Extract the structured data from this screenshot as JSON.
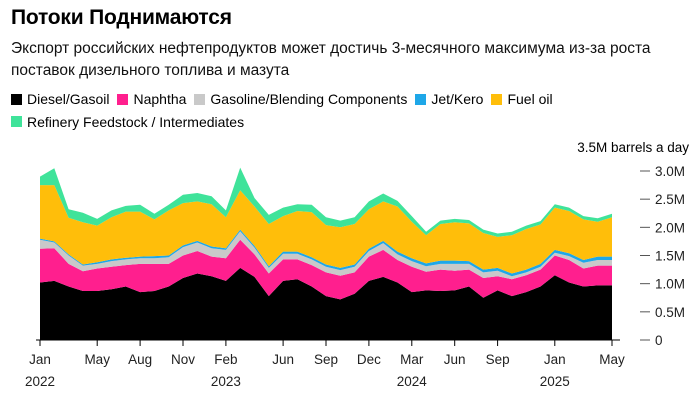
{
  "title": "Потоки Поднимаются",
  "subtitle": "Экспорт российских нефтепродуктов может достичь 3-месячного максимума из-за роста поставок дизельного топлива и мазута",
  "unit_label": "3.5M barrels a day",
  "colors": {
    "diesel": "#000000",
    "naphtha": "#ff1f8e",
    "gasoline": "#c9c9c9",
    "jet": "#1ea7e8",
    "fueloil": "#ffbe0a",
    "feedstock": "#3fe39a"
  },
  "chart_data": {
    "type": "area",
    "stacked": true,
    "legend_position": "top-left",
    "grid": false,
    "ylim": [
      0,
      3.0
    ],
    "y_ticks": [
      0,
      0.5,
      1.0,
      1.5,
      2.0,
      2.5,
      3.0
    ],
    "y_tick_labels": [
      "0",
      "0.5M",
      "1.0M",
      "1.5M",
      "2.0M",
      "2.5M",
      "3.0M"
    ],
    "x_ticks": [
      {
        "label": "Jan",
        "year": "2022",
        "date": "2022-01"
      },
      {
        "label": "May",
        "year": "",
        "date": "2022-05"
      },
      {
        "label": "Aug",
        "year": "",
        "date": "2022-08"
      },
      {
        "label": "Nov",
        "year": "",
        "date": "2022-11"
      },
      {
        "label": "Feb",
        "year": "2023",
        "date": "2023-02"
      },
      {
        "label": "Jun",
        "year": "",
        "date": "2023-06"
      },
      {
        "label": "Sep",
        "year": "",
        "date": "2023-09"
      },
      {
        "label": "Dec",
        "year": "",
        "date": "2023-12"
      },
      {
        "label": "Mar",
        "year": "2024",
        "date": "2024-03"
      },
      {
        "label": "Jun",
        "year": "",
        "date": "2024-06"
      },
      {
        "label": "Sep",
        "year": "",
        "date": "2024-09"
      },
      {
        "label": "Jan",
        "year": "2025",
        "date": "2025-01"
      },
      {
        "label": "May",
        "year": "",
        "date": "2025-05"
      }
    ],
    "x": [
      "2022-01",
      "2022-02",
      "2022-03",
      "2022-04",
      "2022-05",
      "2022-06",
      "2022-07",
      "2022-08",
      "2022-09",
      "2022-10",
      "2022-11",
      "2022-12",
      "2023-01",
      "2023-02",
      "2023-03",
      "2023-04",
      "2023-05",
      "2023-06",
      "2023-07",
      "2023-08",
      "2023-09",
      "2023-10",
      "2023-11",
      "2023-12",
      "2024-01",
      "2024-02",
      "2024-03",
      "2024-04",
      "2024-05",
      "2024-06",
      "2024-07",
      "2024-08",
      "2024-09",
      "2024-10",
      "2024-11",
      "2024-12",
      "2025-01",
      "2025-02",
      "2025-03",
      "2025-04",
      "2025-05"
    ],
    "series": [
      {
        "name": "Diesel/Gasoil",
        "key": "diesel",
        "values": [
          1.02,
          1.05,
          0.95,
          0.87,
          0.87,
          0.9,
          0.95,
          0.85,
          0.87,
          0.95,
          1.1,
          1.18,
          1.13,
          1.05,
          1.28,
          1.12,
          0.78,
          1.05,
          1.08,
          0.95,
          0.78,
          0.72,
          0.82,
          1.05,
          1.12,
          1.02,
          0.85,
          0.88,
          0.87,
          0.88,
          0.95,
          0.75,
          0.88,
          0.78,
          0.85,
          0.95,
          1.15,
          1.02,
          0.95,
          0.97,
          0.97
        ]
      },
      {
        "name": "Naphtha",
        "key": "naphtha",
        "values": [
          0.6,
          0.58,
          0.4,
          0.35,
          0.4,
          0.4,
          0.38,
          0.5,
          0.48,
          0.4,
          0.4,
          0.4,
          0.35,
          0.4,
          0.5,
          0.4,
          0.4,
          0.38,
          0.35,
          0.38,
          0.42,
          0.42,
          0.38,
          0.43,
          0.48,
          0.4,
          0.45,
          0.33,
          0.38,
          0.35,
          0.3,
          0.35,
          0.25,
          0.3,
          0.3,
          0.3,
          0.35,
          0.4,
          0.32,
          0.35,
          0.35
        ]
      },
      {
        "name": "Gasoline/Blending Components",
        "key": "gasoline",
        "values": [
          0.16,
          0.1,
          0.15,
          0.1,
          0.08,
          0.1,
          0.1,
          0.1,
          0.1,
          0.12,
          0.15,
          0.15,
          0.15,
          0.15,
          0.15,
          0.12,
          0.1,
          0.1,
          0.1,
          0.1,
          0.1,
          0.1,
          0.1,
          0.1,
          0.12,
          0.1,
          0.1,
          0.1,
          0.1,
          0.12,
          0.1,
          0.1,
          0.1,
          0.05,
          0.05,
          0.05,
          0.05,
          0.07,
          0.1,
          0.1,
          0.1
        ]
      },
      {
        "name": "Jet/Kero",
        "key": "jet",
        "values": [
          0.02,
          0.02,
          0.02,
          0.02,
          0.03,
          0.03,
          0.03,
          0.03,
          0.04,
          0.03,
          0.03,
          0.03,
          0.03,
          0.03,
          0.03,
          0.03,
          0.03,
          0.04,
          0.04,
          0.04,
          0.04,
          0.04,
          0.04,
          0.04,
          0.04,
          0.05,
          0.05,
          0.05,
          0.06,
          0.06,
          0.05,
          0.05,
          0.05,
          0.05,
          0.05,
          0.05,
          0.05,
          0.05,
          0.05,
          0.06,
          0.06
        ]
      },
      {
        "name": "Fuel oil",
        "key": "fueloil",
        "values": [
          0.95,
          1.0,
          0.65,
          0.75,
          0.65,
          0.75,
          0.82,
          0.8,
          0.65,
          0.8,
          0.75,
          0.7,
          0.75,
          0.55,
          0.7,
          0.7,
          0.75,
          0.63,
          0.72,
          0.8,
          0.7,
          0.72,
          0.72,
          0.7,
          0.7,
          0.8,
          0.65,
          0.5,
          0.65,
          0.68,
          0.67,
          0.65,
          0.55,
          0.68,
          0.72,
          0.7,
          0.75,
          0.75,
          0.72,
          0.62,
          0.7
        ]
      },
      {
        "name": "Refinery Feedstock / Intermediates",
        "key": "feedstock",
        "values": [
          0.15,
          0.3,
          0.15,
          0.17,
          0.12,
          0.12,
          0.1,
          0.12,
          0.1,
          0.1,
          0.15,
          0.15,
          0.14,
          0.12,
          0.4,
          0.15,
          0.16,
          0.15,
          0.12,
          0.13,
          0.14,
          0.12,
          0.12,
          0.14,
          0.14,
          0.1,
          0.1,
          0.06,
          0.06,
          0.06,
          0.06,
          0.06,
          0.06,
          0.06,
          0.06,
          0.06,
          0.06,
          0.06,
          0.06,
          0.06,
          0.06
        ]
      }
    ]
  }
}
